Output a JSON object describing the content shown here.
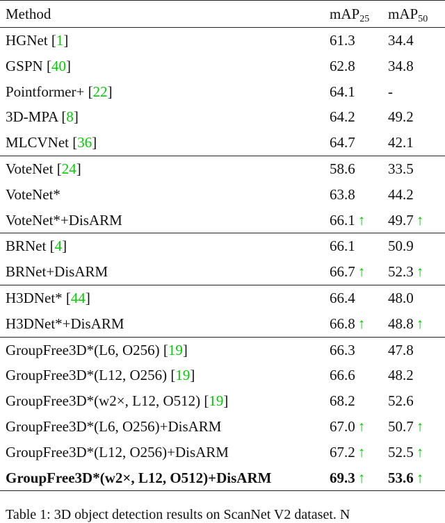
{
  "header": {
    "method": "Method",
    "m25_base": "mAP",
    "m25_sub": "25",
    "m50_base": "mAP",
    "m50_sub": "50"
  },
  "groups": [
    [
      {
        "name": "HGNet ",
        "ref": "1",
        "m25": "61.3",
        "m50": "34.4"
      },
      {
        "name": "GSPN ",
        "ref": "40",
        "m25": "62.8",
        "m50": "34.8"
      },
      {
        "name": "Pointformer+ ",
        "ref": "22",
        "m25": "64.1",
        "m50": "-"
      },
      {
        "name": "3D-MPA ",
        "ref": "8",
        "m25": "64.2",
        "m50": "49.2"
      },
      {
        "name": "MLCVNet ",
        "ref": "36",
        "m25": "64.7",
        "m50": "42.1"
      }
    ],
    [
      {
        "name": "VoteNet ",
        "ref": "24",
        "m25": "58.6",
        "m50": "33.5"
      },
      {
        "name": "VoteNet*",
        "m25": "63.8",
        "m50": "44.2"
      },
      {
        "name": "VoteNet*+DisARM",
        "m25": "66.1",
        "m50": "49.7",
        "up25": "↑",
        "up50": "↑"
      }
    ],
    [
      {
        "name": "BRNet ",
        "ref": "4",
        "m25": "66.1",
        "m50": "50.9"
      },
      {
        "name": "BRNet+DisARM",
        "m25": "66.7",
        "m50": "52.3",
        "up25": "↑",
        "up50": "↑"
      }
    ],
    [
      {
        "name": "H3DNet* ",
        "ref": "44",
        "m25": "66.4",
        "m50": "48.0"
      },
      {
        "name": "H3DNet*+DisARM",
        "m25": "66.8",
        "m50": "48.8",
        "up25": "↑",
        "up50": "↑"
      }
    ],
    [
      {
        "name": "GroupFree3D*(L6, O256) ",
        "ref": "19",
        "m25": "66.3",
        "m50": "47.8"
      },
      {
        "name": "GroupFree3D*(L12, O256) ",
        "ref": "19",
        "m25": "66.6",
        "m50": "48.2"
      },
      {
        "name": "GroupFree3D*(w2×, L12, O512) ",
        "ref": "19",
        "m25": "68.2",
        "m50": "52.6"
      },
      {
        "name": "GroupFree3D*(L6, O256)+DisARM",
        "m25": "67.0",
        "m50": "50.7",
        "up25": "↑",
        "up50": "↑"
      },
      {
        "name": "GroupFree3D*(L12, O256)+DisARM",
        "m25": "67.2",
        "m50": "52.5",
        "up25": "↑",
        "up50": "↑"
      },
      {
        "name": "GroupFree3D*(w2×, L12, O512)+DisARM",
        "m25": "69.3",
        "m50": "53.6",
        "up25": "↑",
        "up50": "↑",
        "bold": true
      }
    ]
  ],
  "caption": "Table 1: 3D object detection results on ScanNet V2 dataset. N"
}
